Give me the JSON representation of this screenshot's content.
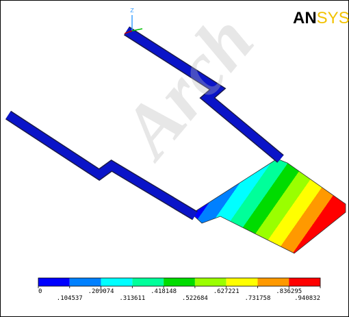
{
  "header": {
    "axis_label": "Z",
    "logo": {
      "dark": "AN",
      "light": "SYS"
    },
    "watermark": "Arch"
  },
  "legend": {
    "colors": [
      "#0000ff",
      "#0080ff",
      "#00ffff",
      "#00ff9a",
      "#00dc00",
      "#9aff00",
      "#ffff00",
      "#ff9900",
      "#ff0000"
    ],
    "labels": [
      "0",
      ".104537",
      ".209074",
      ".313611",
      ".418148",
      ".522684",
      ".627221",
      ".731758",
      ".836295",
      ".940832"
    ]
  }
}
